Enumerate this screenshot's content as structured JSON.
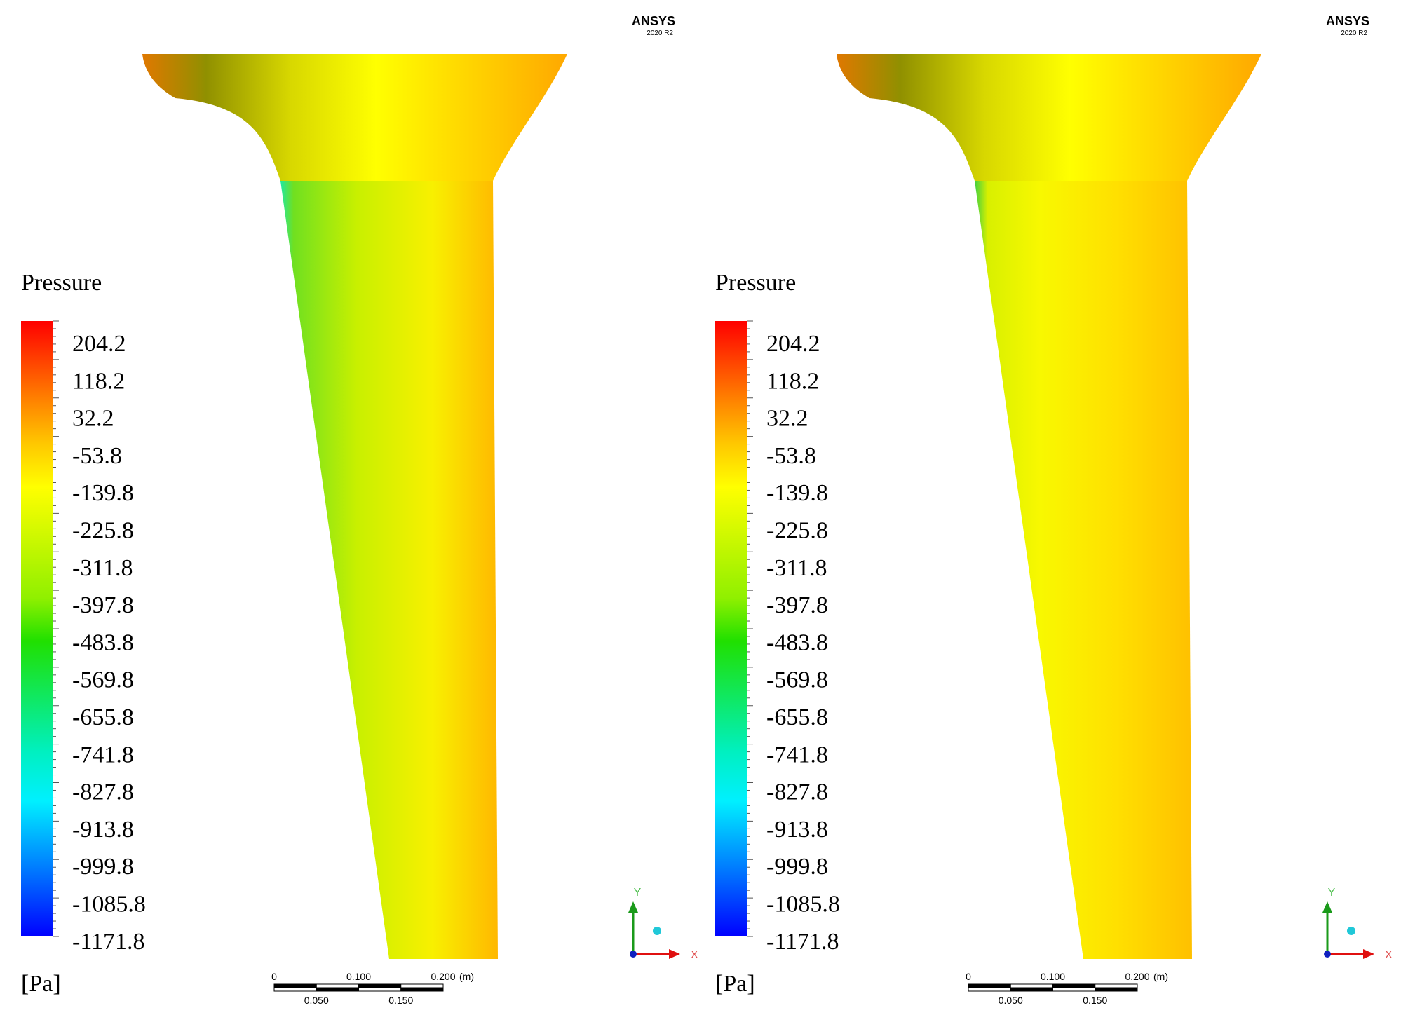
{
  "panels": [
    {
      "logo": {
        "name": "ANSYS",
        "version": "2020 R2"
      },
      "legend": {
        "title": "Pressure",
        "unit": "[Pa]",
        "levels": [
          "204.2",
          "118.2",
          "32.2",
          "-53.8",
          "-139.8",
          "-225.8",
          "-311.8",
          "-397.8",
          "-483.8",
          "-569.8",
          "-655.8",
          "-741.8",
          "-827.8",
          "-913.8",
          "-999.8",
          "-1085.8",
          "-1171.8"
        ]
      },
      "scale_bar": {
        "top_labels": [
          "0",
          "0.100",
          "0.200"
        ],
        "unit": "(m)",
        "bottom_labels": [
          "0.050",
          "0.150"
        ]
      },
      "axes": {
        "y": "Y",
        "x": "X"
      }
    },
    {
      "logo": {
        "name": "ANSYS",
        "version": "2020 R2"
      },
      "legend": {
        "title": "Pressure",
        "unit": "[Pa]",
        "levels": [
          "204.2",
          "118.2",
          "32.2",
          "-53.8",
          "-139.8",
          "-225.8",
          "-311.8",
          "-397.8",
          "-483.8",
          "-569.8",
          "-655.8",
          "-741.8",
          "-827.8",
          "-913.8",
          "-999.8",
          "-1085.8",
          "-1171.8"
        ]
      },
      "scale_bar": {
        "top_labels": [
          "0",
          "0.100",
          "0.200"
        ],
        "unit": "(m)",
        "bottom_labels": [
          "0.050",
          "0.150"
        ]
      },
      "axes": {
        "y": "Y",
        "x": "X"
      }
    }
  ]
}
